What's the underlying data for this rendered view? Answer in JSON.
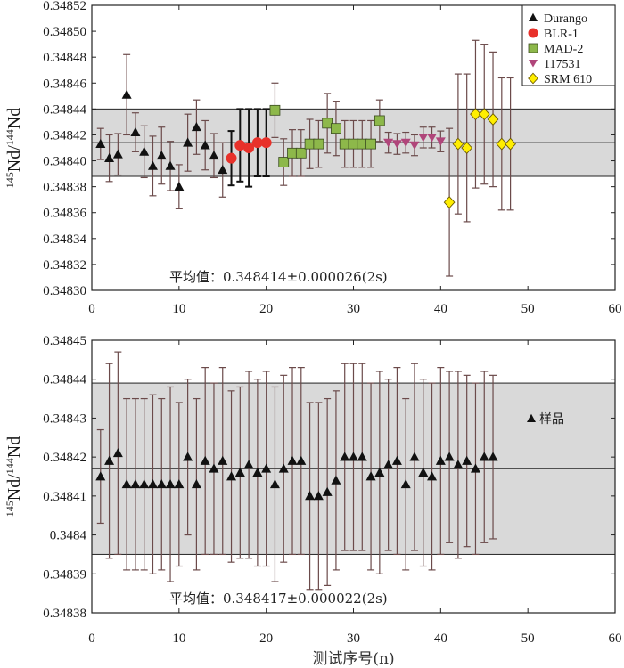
{
  "chart_data": [
    {
      "type": "scatter",
      "panel": "top",
      "ylabel": {
        "pre": "145",
        "mid": "Nd/",
        "sup": "144",
        "post": "Nd"
      },
      "xlim": [
        0,
        60
      ],
      "ylim": [
        0.3483,
        0.34852
      ],
      "yticks": [
        0.3483,
        0.34832,
        0.34834,
        0.34836,
        0.34838,
        0.3484,
        0.34842,
        0.34844,
        0.34846,
        0.34848,
        0.3485,
        0.34852
      ],
      "ytick_labels": [
        "0.34830",
        "0.34832",
        "0.34834",
        "0.34836",
        "0.34838",
        "0.34840",
        "0.34842",
        "0.34844",
        "0.34846",
        "0.34848",
        "0.34850",
        "0.34852"
      ],
      "xticks": [
        0,
        10,
        20,
        30,
        40,
        50,
        60
      ],
      "xtick_labels": [
        "0",
        "10",
        "20",
        "30",
        "40",
        "50",
        "60"
      ],
      "mean": 0.348414,
      "band": [
        0.348388,
        0.34844
      ],
      "mean_text": "平均值：0.348414±0.000026(2s)",
      "legend": [
        {
          "label": "Durango",
          "marker": "triangle-up",
          "color": "#111111"
        },
        {
          "label": "BLR-1",
          "marker": "circle",
          "color": "#e8312a"
        },
        {
          "label": "MAD-2",
          "marker": "square",
          "color": "#8db84a"
        },
        {
          "label": "117531",
          "marker": "triangle-down",
          "color": "#b0457a"
        },
        {
          "label": "SRM 610",
          "marker": "diamond",
          "color": "#ffee00"
        }
      ],
      "series": [
        {
          "name": "Durango",
          "marker": "triangle-up",
          "color": "#111111",
          "errcolor": "#6b4a4a",
          "x": [
            1,
            2,
            3,
            4,
            5,
            6,
            7,
            8,
            9,
            10,
            11,
            12,
            13,
            14,
            15
          ],
          "y": [
            0.348413,
            0.348402,
            0.348405,
            0.348451,
            0.348422,
            0.348407,
            0.348396,
            0.348404,
            0.348396,
            0.34838,
            0.348414,
            0.348426,
            0.348412,
            0.348404,
            0.348393
          ],
          "err": [
            1.2e-05,
            1.8e-05,
            1.6e-05,
            3.1e-05,
            1.5e-05,
            2e-05,
            2.3e-05,
            2.2e-05,
            1.9e-05,
            1.7e-05,
            2.2e-05,
            2.1e-05,
            1.9e-05,
            1.7e-05,
            2.1e-05
          ]
        },
        {
          "name": "BLR-1",
          "marker": "circle",
          "color": "#e8312a",
          "errcolor": "#111111",
          "x": [
            16,
            17,
            18,
            19,
            20
          ],
          "y": [
            0.348402,
            0.348412,
            0.34841,
            0.348414,
            0.348414
          ],
          "err": [
            2.1e-05,
            2.8e-05,
            3e-05,
            2.6e-05,
            2.6e-05
          ]
        },
        {
          "name": "MAD-2",
          "marker": "square",
          "color": "#8db84a",
          "errcolor": "#6b4a4a",
          "x": [
            21,
            22,
            23,
            24,
            25,
            26,
            27,
            28,
            29,
            30,
            31,
            32,
            33
          ],
          "y": [
            0.348439,
            0.348399,
            0.348406,
            0.348406,
            0.348413,
            0.348413,
            0.348429,
            0.348425,
            0.348413,
            0.348413,
            0.348413,
            0.348413,
            0.348431
          ],
          "err": [
            2.1e-05,
            1.8e-05,
            1.8e-05,
            1.8e-05,
            1.9e-05,
            1.8e-05,
            2.3e-05,
            2.1e-05,
            1.8e-05,
            1.8e-05,
            1.8e-05,
            1.8e-05,
            1.6e-05
          ]
        },
        {
          "name": "117531",
          "marker": "triangle-down",
          "color": "#b0457a",
          "errcolor": "#6b4a4a",
          "x": [
            34,
            35,
            36,
            37,
            38,
            39,
            40
          ],
          "y": [
            0.348414,
            0.348413,
            0.348414,
            0.348412,
            0.348418,
            0.348418,
            0.348415
          ],
          "err": [
            8e-06,
            8e-06,
            8e-06,
            8e-06,
            8e-06,
            8e-06,
            8e-06
          ]
        },
        {
          "name": "SRM 610",
          "marker": "diamond",
          "color": "#ffee00",
          "errcolor": "#6b4a4a",
          "x": [
            41,
            42,
            43,
            44,
            45,
            46,
            47,
            48
          ],
          "y": [
            0.348368,
            0.348413,
            0.34841,
            0.348436,
            0.348436,
            0.348432,
            0.348413,
            0.348413
          ],
          "err": [
            5.7e-05,
            5.4e-05,
            5.7e-05,
            5.7e-05,
            5.4e-05,
            5.2e-05,
            5.1e-05,
            5.1e-05
          ]
        }
      ]
    },
    {
      "type": "scatter",
      "panel": "bottom",
      "ylabel": {
        "pre": "145",
        "mid": "Nd/",
        "sup": "144",
        "post": "Nd"
      },
      "xlabel": "测试序号(n)",
      "xlim": [
        0,
        60
      ],
      "ylim": [
        0.34838,
        0.34845
      ],
      "yticks": [
        0.34838,
        0.34839,
        0.3484,
        0.34841,
        0.34842,
        0.34843,
        0.34844,
        0.34845
      ],
      "ytick_labels": [
        "0.34838",
        "0.34839",
        "0.3484",
        "0.34841",
        "0.34842",
        "0.34843",
        "0.34844",
        "0.34845"
      ],
      "xticks": [
        0,
        10,
        20,
        30,
        40,
        50,
        60
      ],
      "xtick_labels": [
        "0",
        "10",
        "20",
        "30",
        "40",
        "50",
        "60"
      ],
      "mean": 0.348417,
      "band": [
        0.348395,
        0.348439
      ],
      "mean_text": "平均值：0.348417±0.000022(2s)",
      "legend": [
        {
          "label": "样品",
          "marker": "triangle-up",
          "color": "#111111"
        }
      ],
      "series": [
        {
          "name": "样品",
          "marker": "triangle-up",
          "color": "#111111",
          "errcolor": "#6b4a4a",
          "x": [
            1,
            2,
            3,
            4,
            5,
            6,
            7,
            8,
            9,
            10,
            11,
            12,
            13,
            14,
            15,
            16,
            17,
            18,
            19,
            20,
            21,
            22,
            23,
            24,
            25,
            26,
            27,
            28,
            29,
            30,
            31,
            32,
            33,
            34,
            35,
            36,
            37,
            38,
            39,
            40,
            41,
            42,
            43,
            44,
            45,
            46
          ],
          "y": [
            0.348415,
            0.348419,
            0.348421,
            0.348413,
            0.348413,
            0.348413,
            0.348413,
            0.348413,
            0.348413,
            0.348413,
            0.34842,
            0.348413,
            0.348419,
            0.348417,
            0.348419,
            0.348415,
            0.348416,
            0.348418,
            0.348416,
            0.348417,
            0.348413,
            0.348417,
            0.348419,
            0.348419,
            0.34841,
            0.34841,
            0.348411,
            0.348414,
            0.34842,
            0.34842,
            0.34842,
            0.348415,
            0.348416,
            0.348418,
            0.348419,
            0.348413,
            0.34842,
            0.348416,
            0.348415,
            0.348419,
            0.34842,
            0.348418,
            0.348419,
            0.348417,
            0.34842,
            0.34842
          ],
          "err": [
            1.2e-05,
            2.5e-05,
            2.6e-05,
            2.2e-05,
            2.2e-05,
            2.2e-05,
            2.3e-05,
            2.2e-05,
            2.5e-05,
            2.1e-05,
            2e-05,
            2.2e-05,
            2.4e-05,
            2.2e-05,
            2.4e-05,
            2.2e-05,
            2.2e-05,
            2.4e-05,
            2.4e-05,
            2.5e-05,
            2.5e-05,
            2.4e-05,
            2.4e-05,
            2.4e-05,
            2.4e-05,
            2.4e-05,
            2.4e-05,
            2.3e-05,
            2.4e-05,
            2.4e-05,
            2.4e-05,
            2.4e-05,
            2.6e-05,
            2.2e-05,
            2.4e-05,
            2.2e-05,
            2.4e-05,
            2.4e-05,
            2.4e-05,
            2.4e-05,
            2.2e-05,
            2.4e-05,
            2.2e-05,
            2.2e-05,
            2.2e-05,
            2.1e-05
          ]
        }
      ]
    }
  ]
}
